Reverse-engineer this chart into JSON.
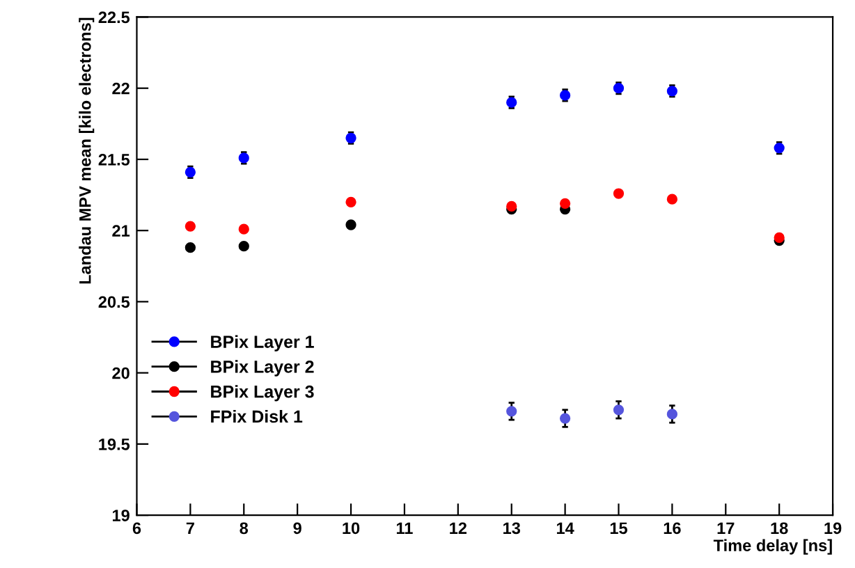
{
  "chart_data": {
    "type": "scatter",
    "xlabel": "Time delay [ns]",
    "ylabel": "Landau MPV mean [kilo electrons]",
    "xlim": [
      6,
      19
    ],
    "xticks": [
      6,
      7,
      8,
      9,
      10,
      11,
      12,
      13,
      14,
      15,
      16,
      17,
      18,
      19
    ],
    "ylim": [
      19,
      22.5
    ],
    "yticks": [
      19,
      19.5,
      20,
      20.5,
      21,
      21.5,
      22,
      22.5
    ],
    "legend": "center left",
    "marker": "circle",
    "grid": false,
    "series": [
      {
        "name": "BPix Layer 1",
        "color": "#0000ff",
        "x": [
          7,
          8,
          10,
          13,
          14,
          15,
          16,
          18
        ],
        "values": [
          21.41,
          21.51,
          21.65,
          21.9,
          21.95,
          22.0,
          21.98,
          21.58
        ],
        "errors": [
          0.04,
          0.04,
          0.04,
          0.04,
          0.04,
          0.04,
          0.04,
          0.04
        ]
      },
      {
        "name": "BPix Layer 2",
        "color": "#000000",
        "x": [
          7,
          8,
          10,
          13,
          14,
          15,
          16,
          18
        ],
        "values": [
          20.88,
          20.89,
          21.04,
          21.15,
          21.15,
          null,
          null,
          20.93
        ]
      },
      {
        "name": "BPix Layer 3",
        "color": "#ff0000",
        "x": [
          7,
          8,
          10,
          13,
          14,
          15,
          16,
          18
        ],
        "values": [
          21.03,
          21.01,
          21.2,
          21.17,
          21.19,
          21.26,
          21.22,
          20.95
        ]
      },
      {
        "name": "FPix Disk 1",
        "color": "#5555dd",
        "x": [
          13,
          14,
          15,
          16
        ],
        "values": [
          19.73,
          19.68,
          19.74,
          19.71
        ],
        "errors": [
          0.06,
          0.06,
          0.06,
          0.06
        ]
      }
    ]
  }
}
